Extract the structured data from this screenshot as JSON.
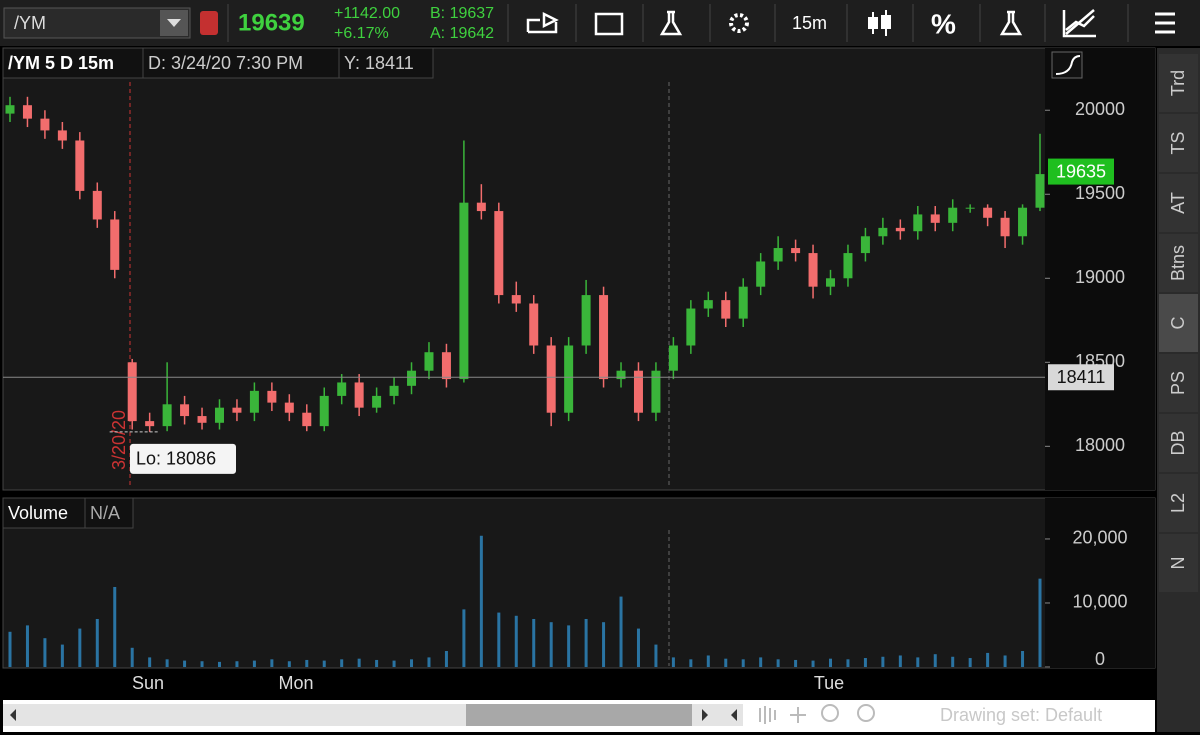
{
  "toolbar": {
    "symbol": "/YM",
    "last": "19639",
    "change": "+1142.00",
    "change_pct": "+6.17%",
    "bid": "B: 19637",
    "ask": "A: 19642",
    "aggregation": "15m",
    "percent": "%"
  },
  "header": {
    "symbol_period": "/YM 5 D 15m",
    "date": "D: 3/24/20 7:30 PM",
    "y": "Y: 18411"
  },
  "chart_data": [
    {
      "type": "candlestick",
      "up_color": "#3ab53a",
      "down_color": "#f26d6d",
      "ylim": [
        17740,
        20180
      ],
      "yticks": [
        18000,
        18500,
        19000,
        19500,
        20000
      ],
      "last_price": 19635,
      "cursor_value": 18411,
      "low_label": "Lo: 18086",
      "date_marker": "3/20/20",
      "open": [
        19980,
        20030,
        19950,
        19880,
        19820,
        19520,
        19350,
        18500,
        18150,
        18120,
        18250,
        18180,
        18140,
        18230,
        18200,
        18330,
        18260,
        18200,
        18120,
        18300,
        18380,
        18230,
        18300,
        18360,
        18450,
        18560,
        18400,
        19450,
        19400,
        18900,
        18850,
        18600,
        18200,
        18600,
        18900,
        18400,
        18450,
        18200,
        18450,
        18600,
        18820,
        18870,
        18760,
        18950,
        19100,
        19180,
        19150,
        18950,
        19000,
        19150,
        19250,
        19300,
        19280,
        19380,
        19330,
        19420,
        19420,
        19360,
        19250,
        19420
      ],
      "high": [
        20080,
        20080,
        20000,
        19930,
        19870,
        19570,
        19400,
        18520,
        18200,
        18500,
        18300,
        18230,
        18280,
        18280,
        18380,
        18380,
        18310,
        18250,
        18350,
        18430,
        18430,
        18350,
        18410,
        18500,
        18620,
        18610,
        19820,
        19560,
        19450,
        18980,
        18900,
        18650,
        18650,
        18990,
        18950,
        18500,
        18500,
        18500,
        18650,
        18870,
        18920,
        18920,
        19000,
        19150,
        19250,
        19230,
        19200,
        19050,
        19200,
        19300,
        19360,
        19350,
        19430,
        19430,
        19470,
        19440,
        19440,
        19400,
        19440,
        19860
      ],
      "low": [
        19930,
        19900,
        19830,
        19770,
        19470,
        19300,
        19000,
        18100,
        18086,
        18090,
        18130,
        18100,
        18100,
        18150,
        18150,
        18210,
        18150,
        18090,
        18090,
        18250,
        18180,
        18200,
        18250,
        18310,
        18400,
        18350,
        18380,
        19350,
        18850,
        18800,
        18550,
        18120,
        18150,
        18550,
        18350,
        18350,
        18150,
        18150,
        18400,
        18550,
        18770,
        18710,
        18710,
        18900,
        19050,
        19100,
        18880,
        18900,
        18950,
        19100,
        19200,
        19230,
        19230,
        19280,
        19280,
        19390,
        19310,
        19180,
        19200,
        19400
      ],
      "close": [
        20030,
        19950,
        19880,
        19820,
        19520,
        19350,
        19050,
        18150,
        18120,
        18250,
        18180,
        18140,
        18230,
        18200,
        18330,
        18260,
        18200,
        18120,
        18300,
        18380,
        18230,
        18300,
        18360,
        18450,
        18560,
        18400,
        19450,
        19400,
        18900,
        18850,
        18600,
        18200,
        18600,
        18900,
        18400,
        18450,
        18200,
        18450,
        18600,
        18820,
        18870,
        18760,
        18950,
        19100,
        19180,
        19150,
        18950,
        19000,
        19150,
        19250,
        19300,
        19280,
        19380,
        19330,
        19420,
        19420,
        19360,
        19250,
        19420,
        19620
      ]
    },
    {
      "type": "bar",
      "title": "Volume",
      "subtitle": "N/A",
      "color": "#2a74a3",
      "ylim": [
        0,
        21400
      ],
      "yticks": [
        0,
        {
          "value": 10000,
          "label": "10,000"
        },
        {
          "value": 20000,
          "label": "20,000"
        }
      ],
      "values": [
        5500,
        6500,
        4500,
        3500,
        6000,
        7500,
        12500,
        3000,
        1500,
        1200,
        1000,
        900,
        800,
        900,
        1000,
        1200,
        900,
        1100,
        1000,
        1200,
        1300,
        1100,
        1000,
        1200,
        1500,
        2500,
        9000,
        20500,
        8500,
        8000,
        7500,
        7000,
        6500,
        7500,
        7000,
        11000,
        6000,
        3500,
        1500,
        1200,
        1800,
        1300,
        1200,
        1500,
        1200,
        1100,
        1000,
        1300,
        1200,
        1400,
        1600,
        1800,
        1500,
        2000,
        1600,
        1400,
        2200,
        1800,
        2500,
        13800
      ]
    }
  ],
  "x_axis": {
    "labels": [
      "Sun",
      "Mon",
      "Tue"
    ]
  },
  "sidebar_tabs": [
    "Trd",
    "TS",
    "AT",
    "Btns",
    "C",
    "PS",
    "DB",
    "L2",
    "N"
  ],
  "footer": {
    "drawing_set": "Drawing set: Default"
  }
}
